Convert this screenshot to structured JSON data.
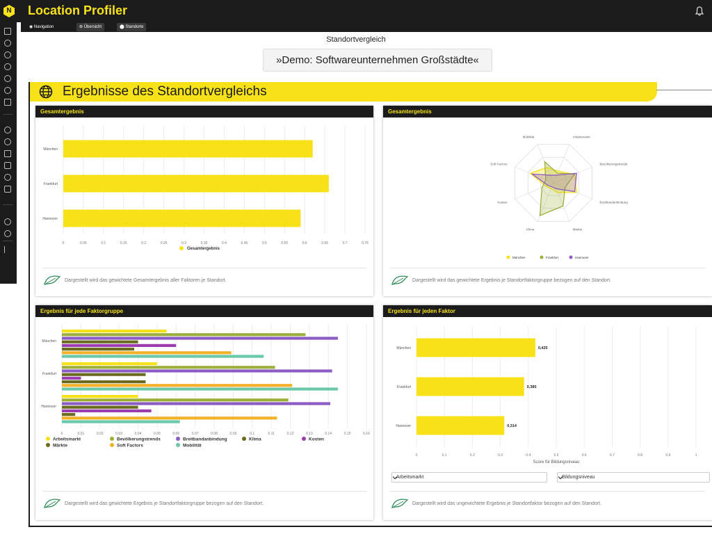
{
  "app": {
    "title": "Location Profiler",
    "logo_letter": "N"
  },
  "subnav": {
    "items": [
      {
        "label": "Navigation"
      },
      {
        "label": "Übersicht"
      },
      {
        "label": "Standorte"
      }
    ]
  },
  "sidebar": {
    "icons": [
      "chart-icon",
      "shield-icon",
      "gear-icon",
      "target-icon",
      "search-people-icon",
      "search-icon",
      "trend-icon",
      "search-icon",
      "location-icon",
      "list-icon",
      "card-icon",
      "coin-icon",
      "box-icon",
      "wrench-icon",
      "network-icon",
      "logout-icon"
    ]
  },
  "page": {
    "subtitle": "Standortvergleich",
    "demo_title": "»Demo: Softwareunternehmen Großstädte«"
  },
  "section": {
    "title": "Ergebnisse des Standortvergleichs"
  },
  "colors": {
    "yellow": "#f7e21a",
    "olive": "#9caf3b",
    "purple": "#8b5cc4",
    "ochre": "#d8b21a",
    "magenta": "#9b3db0",
    "darkolive": "#6b6b1f",
    "orange": "#f5b02a",
    "teal": "#6ac9a8",
    "dark": "#1b1b1b"
  },
  "cards": {
    "total_bar": {
      "title": "Gesamtergebnis",
      "note": "Dargestellt wird das gewichtete Gesamtergebnis aller Faktoren je Standort.",
      "chart_data": {
        "type": "bar",
        "orientation": "horizontal",
        "categories": [
          "München",
          "Frankfurt",
          "Hannover"
        ],
        "series": [
          {
            "name": "Gesamtergebnis",
            "values": [
              0.62,
              0.66,
              0.59
            ]
          }
        ],
        "xlim": [
          0,
          0.75
        ],
        "xticks": [
          "0",
          "0.05",
          "0.1",
          "0.15",
          "0.2",
          "0.25",
          "0.3",
          "0.35",
          "0.4",
          "0.45",
          "0.5",
          "0.55",
          "0.6",
          "0.65",
          "0.7",
          "0.75"
        ],
        "grid": true,
        "legend": "bottom"
      }
    },
    "radar": {
      "title": "Gesamtergebnis",
      "note": "Dargestellt wird das gewichtete Ergebnis je Standortfaktorgruppe bezogen auf den Standort.",
      "chart_data": {
        "type": "radar",
        "axes": [
          "Arbeitsmarkt",
          "Bevölkerungstrends",
          "Breitbandanbindung",
          "Märkte",
          "Klima",
          "Kosten",
          "Soft Factors",
          "Mobilität"
        ],
        "series": [
          {
            "name": "München",
            "values": [
              0.3,
              0.55,
              0.6,
              0.25,
              0.15,
              0.2,
              0.6,
              0.4
            ]
          },
          {
            "name": "Frankfurt",
            "values": [
              0.25,
              0.55,
              0.3,
              0.6,
              0.85,
              0.3,
              0.2,
              0.55
            ]
          },
          {
            "name": "Hannover",
            "values": [
              0.2,
              0.6,
              0.55,
              0.15,
              0.1,
              0.15,
              0.55,
              0.2
            ]
          }
        ],
        "legend": "bottom"
      }
    },
    "group_bar": {
      "title": "Ergebnis für jede Faktorgruppe",
      "note": "Dargestellt wird das gewichtete Ergebnis je Standortfaktorgruppe bezogen auf den Standort.",
      "chart_data": {
        "type": "bar",
        "orientation": "horizontal",
        "categories": [
          "München",
          "Frankfurt",
          "Hannover"
        ],
        "series": [
          {
            "name": "Arbeitsmarkt",
            "values": [
              0.055,
              0.05,
              0.04
            ]
          },
          {
            "name": "Bevölkerungstrends",
            "values": [
              0.128,
              0.112,
              0.119
            ]
          },
          {
            "name": "Breitbandanbindung",
            "values": [
              0.145,
              0.142,
              0.141
            ]
          },
          {
            "name": "Klima",
            "values": [
              0.04,
              0.044,
              0.04
            ]
          },
          {
            "name": "Kosten",
            "values": [
              0.06,
              0.01,
              0.047
            ]
          },
          {
            "name": "Märkte",
            "values": [
              0.038,
              0.044,
              0.007
            ]
          },
          {
            "name": "Soft Factors",
            "values": [
              0.089,
              0.121,
              0.113
            ]
          },
          {
            "name": "Mobilität",
            "values": [
              0.106,
              0.145,
              0.062
            ]
          }
        ],
        "xlim": [
          0,
          0.16
        ],
        "xticks": [
          "0",
          "0.01",
          "0.02",
          "0.03",
          "0.04",
          "0.05",
          "0.06",
          "0.07",
          "0.08",
          "0.09",
          "0.1",
          "0.11",
          "0.12",
          "0.13",
          "0.14",
          "0.15",
          "0.16"
        ],
        "grid": true,
        "legend": "bottom"
      }
    },
    "factor_bar": {
      "title": "Ergebnis für jeden Faktor",
      "note": "Dargestellt wird das ungewichtete Ergebnis je Standortfaktor bezogen auf den Standort.",
      "chart_data": {
        "type": "bar",
        "orientation": "horizontal",
        "categories": [
          "München",
          "Frankfurt",
          "Hannover"
        ],
        "series": [
          {
            "name": "Bildungsniveau",
            "values": [
              0.425,
              0.385,
              0.314
            ]
          }
        ],
        "data_labels": [
          "0,425",
          "0,385",
          "0,314"
        ],
        "xlim": [
          0,
          1
        ],
        "xticks": [
          "0",
          "0.1",
          "0.2",
          "0.3",
          "0.4",
          "0.5",
          "0.6",
          "0.7",
          "0.8",
          "0.9",
          "1"
        ],
        "xlabel": "Score für Bildungsniveau",
        "grid": true
      },
      "select_group": "Arbeitsmarkt",
      "select_factor": "Bildungsniveau"
    }
  }
}
